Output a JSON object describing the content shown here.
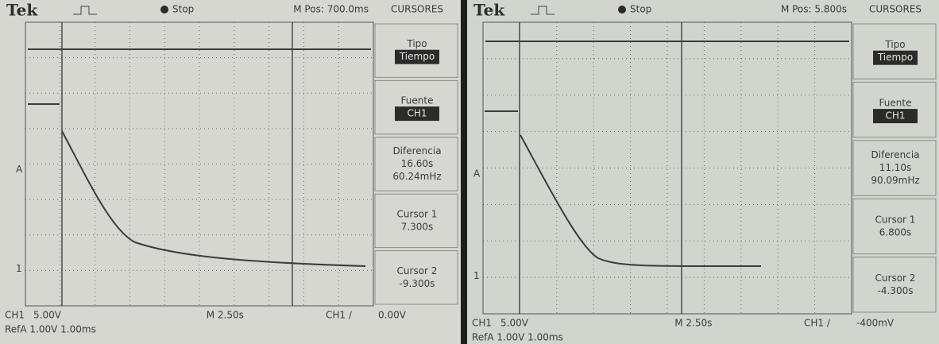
{
  "screens": [
    {
      "header": {
        "brand": "Tek",
        "status": "Stop",
        "position": "M Pos: 700.0ms",
        "menu_title": "CURSORES"
      },
      "menu": [
        {
          "label": "Tipo",
          "values": [
            "Tiempo"
          ],
          "highlighted": true
        },
        {
          "label": "Fuente",
          "values": [
            "CH1"
          ],
          "highlighted": true
        },
        {
          "label": "Diferencia",
          "values": [
            "16.60s",
            "60.24mHz"
          ]
        },
        {
          "label": "Cursor 1",
          "values": [
            "7.300s"
          ]
        },
        {
          "label": "Cursor 2",
          "values": [
            "-9.300s"
          ]
        }
      ],
      "markers": {
        "trigger": "A",
        "channel": "1"
      },
      "footer": {
        "channel": "CH1",
        "scale": "5.00V",
        "timebase": "M 2.50s",
        "trigger": "CH1 ∕",
        "level": "0.00V",
        "reference": "RefA 1.00V 1.00ms"
      }
    },
    {
      "header": {
        "brand": "Tek",
        "status": "Stop",
        "position": "M Pos: 5.800s",
        "menu_title": "CURSORES"
      },
      "menu": [
        {
          "label": "Tipo",
          "values": [
            "Tiempo"
          ],
          "highlighted": true
        },
        {
          "label": "Fuente",
          "values": [
            "CH1"
          ],
          "highlighted": true
        },
        {
          "label": "Diferencia",
          "values": [
            "11.10s",
            "90.09mHz"
          ]
        },
        {
          "label": "Cursor 1",
          "values": [
            "6.800s"
          ]
        },
        {
          "label": "Cursor 2",
          "values": [
            "-4.300s"
          ]
        }
      ],
      "markers": {
        "trigger": "A",
        "channel": "1"
      },
      "footer": {
        "channel": "CH1",
        "scale": "5.00V",
        "timebase": "M 2.50s",
        "trigger": "CH1 ∕",
        "level": "-400mV",
        "reference": "RefA 1.00V 1.00ms"
      }
    }
  ]
}
